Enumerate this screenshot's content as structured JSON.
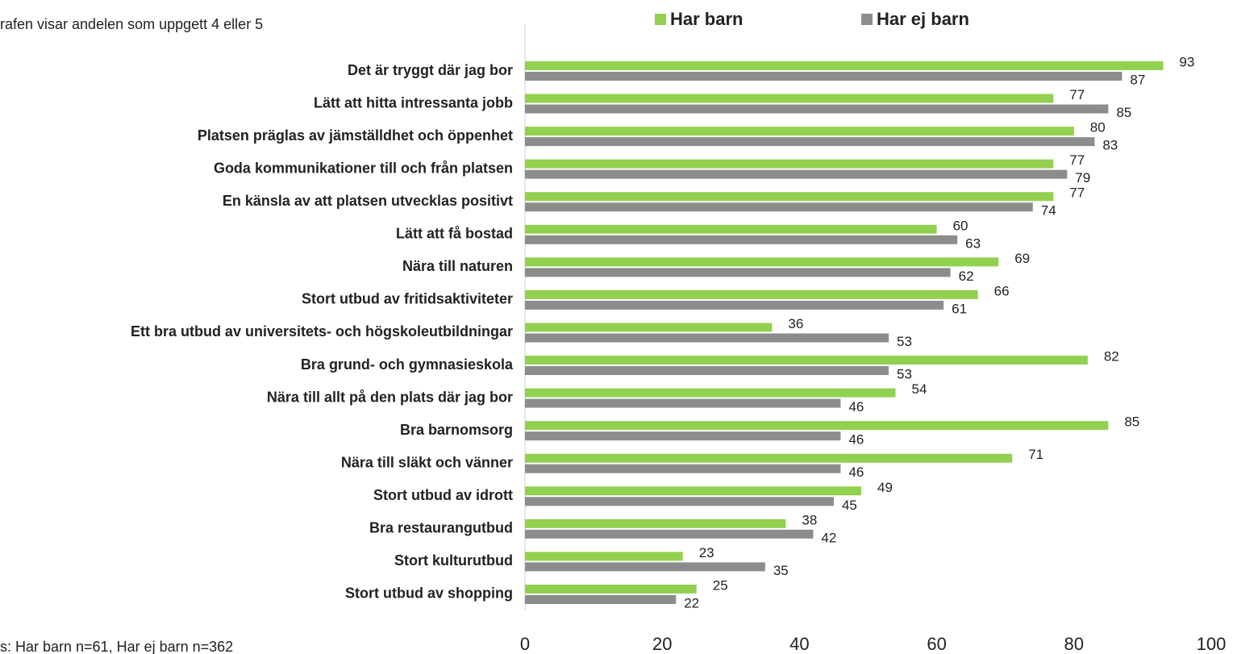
{
  "chart_data": {
    "type": "bar",
    "orientation": "horizontal",
    "subtitle": "rafen visar andelen som uppgett 4 eller 5",
    "note": "s: Har barn n=61, Har ej barn n=362",
    "categories": [
      "Det är tryggt där jag bor",
      "Lätt att hitta intressanta jobb",
      "Platsen präglas av jämställdhet och öppenhet",
      "Goda kommunikationer till och från platsen",
      "En känsla av att platsen utvecklas positivt",
      "Lätt att få bostad",
      "Nära till naturen",
      "Stort utbud av fritidsaktiviteter",
      "Ett bra utbud av universitets- och högskoleutbildningar",
      "Bra grund- och gymnasieskola",
      "Nära till allt på den plats där jag bor",
      "Bra barnomsorg",
      "Nära till släkt och vänner",
      "Stort utbud av idrott",
      "Bra restaurangutbud",
      "Stort kulturutbud",
      "Stort utbud av shopping"
    ],
    "series": [
      {
        "name": "Har barn",
        "color": "#92d050",
        "values": [
          93,
          77,
          80,
          77,
          77,
          60,
          69,
          66,
          36,
          82,
          54,
          85,
          71,
          49,
          38,
          23,
          25
        ]
      },
      {
        "name": "Har ej barn",
        "color": "#8c8c8c",
        "values": [
          87,
          85,
          83,
          79,
          74,
          63,
          62,
          61,
          53,
          53,
          46,
          46,
          46,
          45,
          42,
          35,
          22
        ]
      }
    ],
    "xlim": [
      0,
      100
    ],
    "xticks": [
      0,
      20,
      40,
      60,
      80,
      100
    ],
    "legend": "top"
  }
}
